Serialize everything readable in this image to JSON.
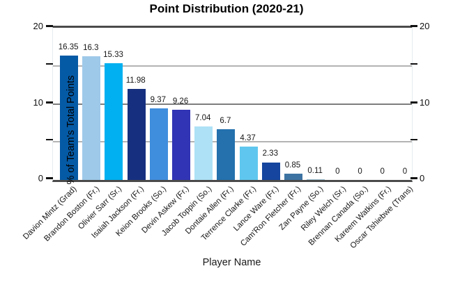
{
  "title": "Point Distribution (2020-21)",
  "axis": {
    "y_label": "% of Team's Total Points",
    "x_label": "Player Name",
    "left_tick_labels": [
      "0",
      "10",
      "20"
    ],
    "right_tick_labels": [
      "0",
      "10",
      "20"
    ]
  },
  "chart_data": {
    "type": "bar",
    "title": "Point Distribution (2020-21)",
    "xlabel": "Player Name",
    "ylabel": "% of Team's Total Points",
    "ylim": [
      0,
      20
    ],
    "yticks_major": [
      0,
      10,
      20
    ],
    "yticks_minor": [
      5,
      15
    ],
    "grid": true,
    "legend": "none",
    "categories": [
      "Davion Mintz (Grad)",
      "Brandon Boston (Fr.)",
      "Olivier Sarr (Sr.)",
      "Isaiah Jackson (Fr.)",
      "Keion Brooks (So.)",
      "Devin Askew (Fr.)",
      "Jacob Toppin (So.)",
      "Dontaie Allen (Fr.)",
      "Terrence Clarke (Fr.)",
      "Lance Ware (Fr.)",
      "Cam'Ron Fletcher (Fr.)",
      "Zan Payne (So.)",
      "Riley Welch (Sr.)",
      "Brennan Canada (So.)",
      "Kareem Watkins (Fr.)",
      "Oscar Tshiebwe (Trans)"
    ],
    "values": [
      16.35,
      16.3,
      15.33,
      11.98,
      9.37,
      9.26,
      7.04,
      6.7,
      4.37,
      2.33,
      0.85,
      0.11,
      0,
      0,
      0,
      0
    ],
    "value_labels": [
      "16.35",
      "16.3",
      "15.33",
      "11.98",
      "9.37",
      "9.26",
      "7.04",
      "6.7",
      "4.37",
      "2.33",
      "0.85",
      "0.11",
      "0",
      "0",
      "0",
      "0"
    ],
    "bar_colors": [
      "#055aa5",
      "#9ec9e9",
      "#00b0f0",
      "#16307f",
      "#3f8ddd",
      "#3134b4",
      "#aee1f6",
      "#2471ae",
      "#5fc7ef",
      "#15459e",
      "#3d73a2",
      "#9dbed2",
      null,
      null,
      null,
      null
    ]
  }
}
